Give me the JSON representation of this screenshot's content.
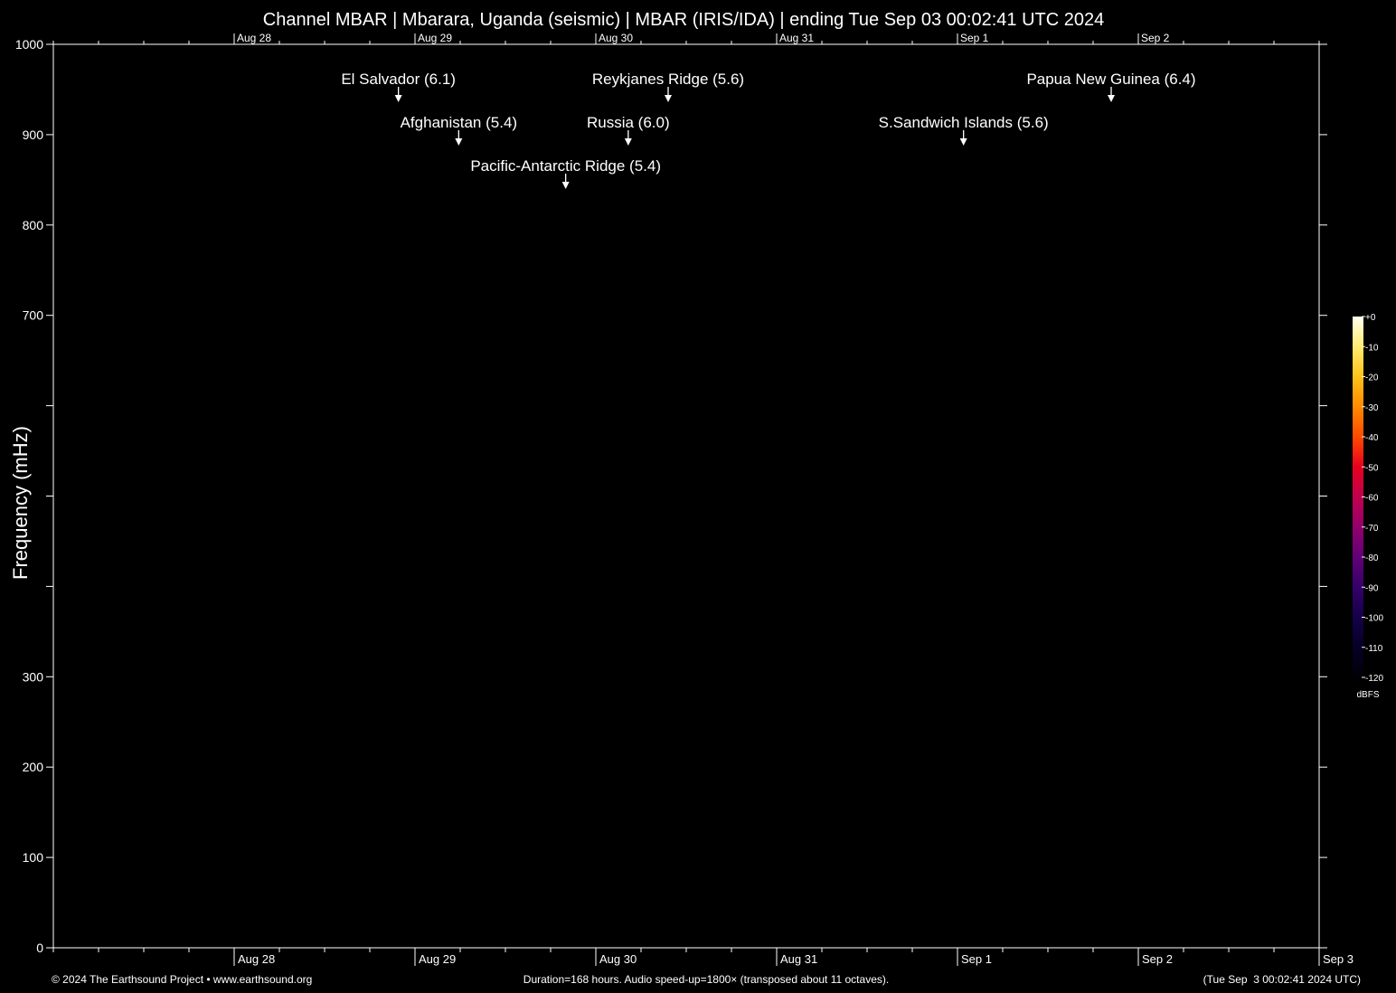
{
  "chart_data": {
    "type": "heatmap",
    "title": "Channel MBAR | Mbarara, Uganda (seismic) | MBAR (IRIS/IDA) | ending Tue Sep 03 00:02:41 UTC 2024",
    "ylabel": "Frequency (mHz)",
    "xlabel": "",
    "ylim": [
      0,
      1000
    ],
    "y_tick_labels": [
      {
        "value": 0,
        "label": "0"
      },
      {
        "value": 100,
        "label": "100"
      },
      {
        "value": 200,
        "label": "200"
      },
      {
        "value": 300,
        "label": "300"
      },
      {
        "value": 400,
        "label": ""
      },
      {
        "value": 500,
        "label": ""
      },
      {
        "value": 600,
        "label": ""
      },
      {
        "value": 700,
        "label": "700"
      },
      {
        "value": 800,
        "label": "800"
      },
      {
        "value": 900,
        "label": "900"
      },
      {
        "value": 1000,
        "label": "1000"
      }
    ],
    "x_range_hours": [
      0,
      168
    ],
    "x_tick_labels_top": [
      {
        "hour": 24,
        "label": "Aug 28"
      },
      {
        "hour": 48,
        "label": "Aug 29"
      },
      {
        "hour": 72,
        "label": "Aug 30"
      },
      {
        "hour": 96,
        "label": "Aug 31"
      },
      {
        "hour": 120,
        "label": "Sep  1"
      },
      {
        "hour": 144,
        "label": "Sep  2"
      }
    ],
    "x_tick_labels_bottom": [
      {
        "hour": 24,
        "label": "Aug 28"
      },
      {
        "hour": 48,
        "label": "Aug 29"
      },
      {
        "hour": 72,
        "label": "Aug 30"
      },
      {
        "hour": 96,
        "label": "Aug 31"
      },
      {
        "hour": 120,
        "label": "Sep  1"
      },
      {
        "hour": 144,
        "label": "Sep  2"
      },
      {
        "hour": 168,
        "label": "Sep  3"
      }
    ],
    "events": [
      {
        "label": "El Salvador (6.1)",
        "hour": 45.8,
        "row": 0
      },
      {
        "label": "Reykjanes Ridge (5.6)",
        "hour": 81.6,
        "row": 0
      },
      {
        "label": "Papua New Guinea (6.4)",
        "hour": 140.4,
        "row": 0
      },
      {
        "label": "Afghanistan (5.4)",
        "hour": 53.8,
        "row": 1
      },
      {
        "label": "Russia (6.0)",
        "hour": 76.3,
        "row": 1
      },
      {
        "label": "S.Sandwich Islands (5.6)",
        "hour": 120.8,
        "row": 1
      },
      {
        "label": "Pacific-Antarctic Ridge (5.4)",
        "hour": 68.0,
        "row": 2
      }
    ],
    "colorbar": {
      "unit": "dBFS",
      "ticks": [
        "+0",
        "-10",
        "-20",
        "-30",
        "-40",
        "-50",
        "-60",
        "-70",
        "-80",
        "-90",
        "-100",
        "-110",
        "-120"
      ],
      "colors": [
        "#fffff0",
        "#ffeb70",
        "#ffc21a",
        "#ff8a00",
        "#ff4a00",
        "#e8001e",
        "#c0004d",
        "#92006c",
        "#620077",
        "#35006a",
        "#15004a",
        "#060026",
        "#000008"
      ]
    },
    "grid": false
  },
  "footer": {
    "left": "© 2024 The Earthsound Project • www.earthsound.org",
    "center": "Duration=168 hours. Audio speed-up=1800× (transposed about 11 octaves).",
    "right": "(Tue Sep  3 00:02:41 2024 UTC)"
  }
}
